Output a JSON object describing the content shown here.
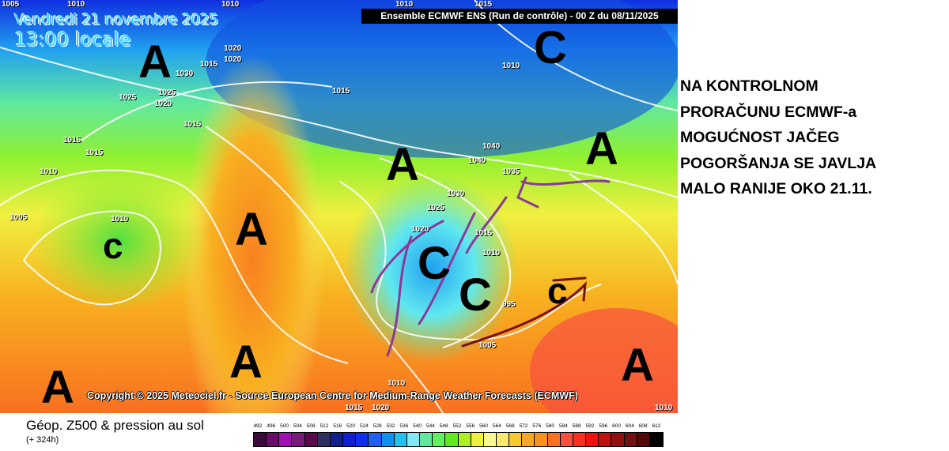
{
  "header": {
    "date": "Vendredi 21 novembre 2025",
    "time": "13:00 locale",
    "run": "Ensemble ECMWF ENS  (Run de contrôle)  -  00 Z du 08/11/2025"
  },
  "map": {
    "copyright": "Copyright © 2025 Meteociel.fr - Source European Centre for Medium-Range Weather Forecasts (ECMWF)",
    "pressure_systems": [
      "A",
      "C",
      "A",
      "A",
      "c",
      "A",
      "C",
      "C",
      "c",
      "A",
      "A",
      "A"
    ],
    "isobar_labels": [
      "1005",
      "1010",
      "1010",
      "1010",
      "1020",
      "1015",
      "1020",
      "1030",
      "1025",
      "1020",
      "1025",
      "1015",
      "1015",
      "1015",
      "1015",
      "1010",
      "1005",
      "1010",
      "1010",
      "1015",
      "1040",
      "1040",
      "1035",
      "1030",
      "1025",
      "1020",
      "1015",
      "1010",
      "995",
      "1005",
      "1010",
      "1015",
      "1020",
      "1010"
    ],
    "arrow_colors": {
      "purple": "#8a3a9a",
      "brown": "#7a1010"
    }
  },
  "legend": {
    "title": "Géop. Z500 & pression au sol",
    "subtitle": "(+ 324h)",
    "scale_labels": [
      "492",
      "496",
      "500",
      "504",
      "508",
      "512",
      "516",
      "520",
      "524",
      "528",
      "532",
      "536",
      "540",
      "544",
      "548",
      "552",
      "556",
      "560",
      "564",
      "568",
      "572",
      "576",
      "580",
      "584",
      "588",
      "592",
      "596",
      "600",
      "604",
      "608",
      "612"
    ],
    "scale_colors": [
      "#3a0a3a",
      "#6a0a6a",
      "#a010b0",
      "#7a1a7a",
      "#5a0a4a",
      "#303060",
      "#102090",
      "#1020d0",
      "#1030f0",
      "#2060f0",
      "#1090f0",
      "#20c0f0",
      "#80e8f8",
      "#60e8a0",
      "#60f060",
      "#60e820",
      "#b0f020",
      "#f0f040",
      "#f8f890",
      "#f8e870",
      "#f8c830",
      "#f8a820",
      "#f89020",
      "#f87020",
      "#f85040",
      "#f83020",
      "#f01010",
      "#c01010",
      "#901010",
      "#701010",
      "#500808",
      "#000000"
    ]
  },
  "note": {
    "lines": [
      "NA KONTROLNOM",
      "PRORAČUNU ECMWF-a",
      "MOGUĆNOST JAČEG",
      "POGORŠANJA SE JAVLJA",
      "MALO RANIJE OKO 21.11."
    ]
  }
}
